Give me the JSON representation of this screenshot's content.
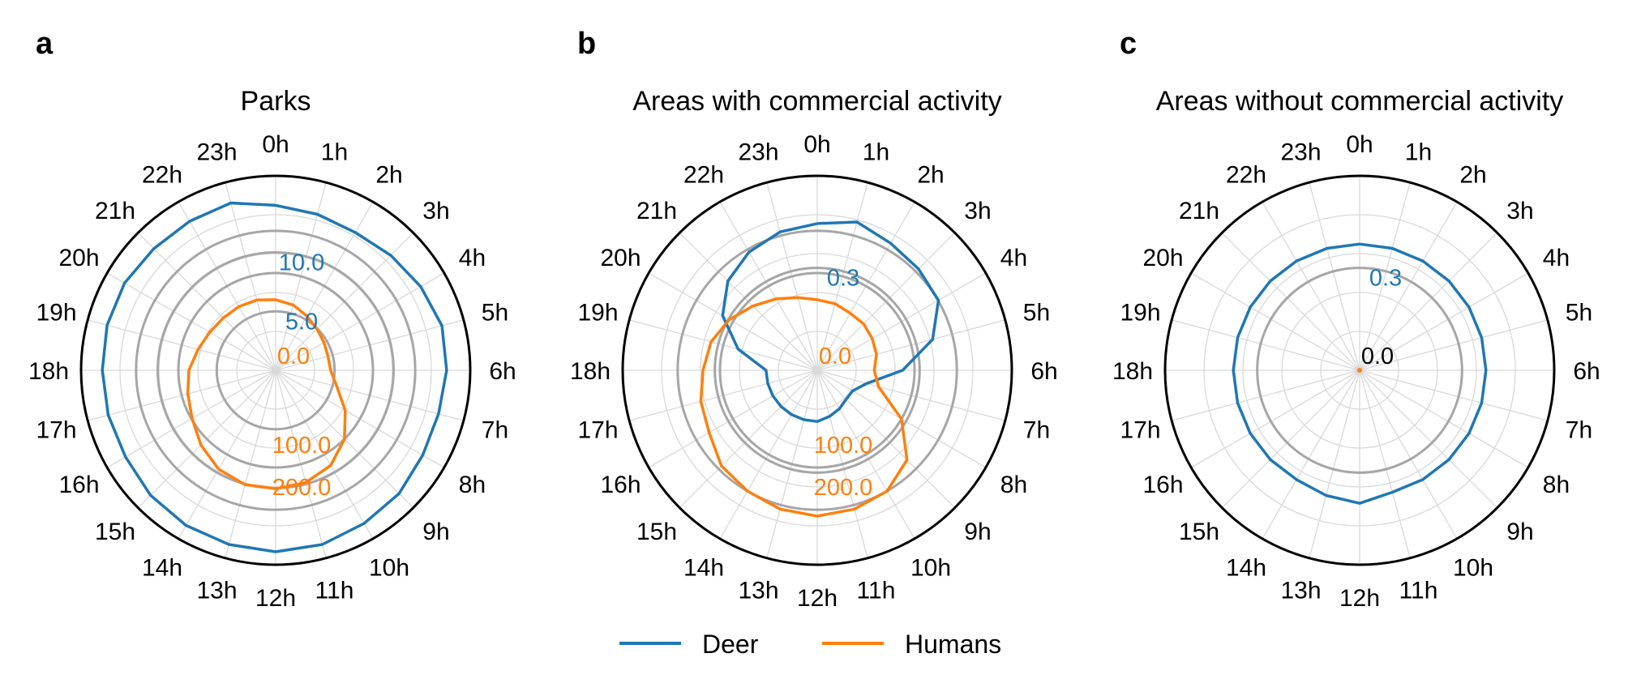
{
  "colors": {
    "deer": "#1f77b4",
    "humans": "#ff7f0e",
    "grid": "#d9d9d9",
    "ref_ring": "#a6a6a6",
    "frame": "#000000"
  },
  "hour_labels": [
    "0h",
    "1h",
    "2h",
    "3h",
    "4h",
    "5h",
    "6h",
    "7h",
    "8h",
    "9h",
    "10h",
    "11h",
    "12h",
    "13h",
    "14h",
    "15h",
    "16h",
    "17h",
    "18h",
    "19h",
    "20h",
    "21h",
    "22h",
    "23h"
  ],
  "legend": [
    {
      "name": "Deer",
      "color": "#1f77b4"
    },
    {
      "name": "Humans",
      "color": "#ff7f0e"
    }
  ],
  "chart_data": [
    {
      "type": "line",
      "projection": "polar",
      "panel_letter": "a",
      "title": "Parks",
      "x": [
        0,
        1,
        2,
        3,
        4,
        5,
        6,
        7,
        8,
        9,
        10,
        11,
        12,
        13,
        14,
        15,
        16,
        17,
        18,
        19,
        20,
        21,
        22,
        23
      ],
      "deer_axis": {
        "range": [
          0,
          16.5
        ],
        "ring_values": [
          5.0,
          10.0
        ],
        "ring_labels": [
          "5.0",
          "10.0"
        ],
        "zero_label": ""
      },
      "humans_axis": {
        "range": [
          -130,
          330
        ],
        "ring_values": [
          100.0,
          200.0
        ],
        "ring_labels": [
          "100.0",
          "200.0"
        ],
        "zero_label": "0.0"
      },
      "series": [
        {
          "name": "Deer",
          "values": [
            14.0,
            13.7,
            13.5,
            13.8,
            14.2,
            14.6,
            14.5,
            14.3,
            14.4,
            14.8,
            15.0,
            15.3,
            15.4,
            15.3,
            15.2,
            15.0,
            14.7,
            14.7,
            14.7,
            14.8,
            14.8,
            14.6,
            14.6,
            14.7
          ]
        },
        {
          "name": "Humans",
          "values": [
            37,
            30,
            18,
            8,
            2,
            -2,
            0,
            20,
            60,
            100,
            130,
            145,
            150,
            150,
            140,
            120,
            98,
            85,
            75,
            60,
            50,
            45,
            44,
            42
          ]
        }
      ]
    },
    {
      "type": "line",
      "projection": "polar",
      "panel_letter": "b",
      "title": "Areas with commercial activity",
      "x": [
        0,
        1,
        2,
        3,
        4,
        5,
        6,
        7,
        8,
        9,
        10,
        11,
        12,
        13,
        14,
        15,
        16,
        17,
        18,
        19,
        20,
        21,
        22,
        23
      ],
      "deer_axis": {
        "range": [
          0,
          0.57
        ],
        "ring_values": [
          0.3
        ],
        "ring_labels": [
          "0.3"
        ],
        "zero_label": ""
      },
      "humans_axis": {
        "range": [
          -130,
          330
        ],
        "ring_values": [
          100.0,
          200.0
        ],
        "ring_labels": [
          "100.0",
          "200.0"
        ],
        "zero_label": "0.0"
      },
      "series": [
        {
          "name": "Deer",
          "values": [
            0.43,
            0.45,
            0.43,
            0.42,
            0.41,
            0.35,
            0.25,
            0.15,
            0.12,
            0.12,
            0.13,
            0.14,
            0.15,
            0.15,
            0.15,
            0.15,
            0.15,
            0.15,
            0.15,
            0.24,
            0.32,
            0.37,
            0.4,
            0.42
          ]
        },
        {
          "name": "Humans",
          "values": [
            37,
            33,
            26,
            25,
            20,
            15,
            5,
            20,
            100,
            170,
            200,
            210,
            215,
            210,
            200,
            190,
            165,
            155,
            140,
            130,
            110,
            85,
            65,
            48
          ]
        }
      ]
    },
    {
      "type": "line",
      "projection": "polar",
      "panel_letter": "c",
      "title": "Areas without commercial activity",
      "x": [
        0,
        1,
        2,
        3,
        4,
        5,
        6,
        7,
        8,
        9,
        10,
        11,
        12,
        13,
        14,
        15,
        16,
        17,
        18,
        19,
        20,
        21,
        22,
        23
      ],
      "deer_axis": {
        "range": [
          0,
          0.57
        ],
        "ring_values": [
          0.3
        ],
        "ring_labels": [
          "0.3"
        ],
        "zero_label": "0.0"
      },
      "humans_axis": {
        "range": [
          0,
          1
        ],
        "ring_values": [],
        "ring_labels": [],
        "zero_label": ""
      },
      "series": [
        {
          "name": "Deer",
          "values": [
            0.37,
            0.37,
            0.37,
            0.37,
            0.37,
            0.37,
            0.37,
            0.37,
            0.37,
            0.37,
            0.37,
            0.37,
            0.39,
            0.38,
            0.37,
            0.37,
            0.37,
            0.37,
            0.37,
            0.37,
            0.37,
            0.37,
            0.37,
            0.37
          ]
        },
        {
          "name": "Humans",
          "values": [
            0,
            0,
            0,
            0,
            0,
            0,
            0,
            0,
            0,
            0,
            0,
            0,
            0,
            0,
            0,
            0,
            0,
            0,
            0,
            0,
            0,
            0,
            0,
            0
          ]
        }
      ]
    }
  ]
}
